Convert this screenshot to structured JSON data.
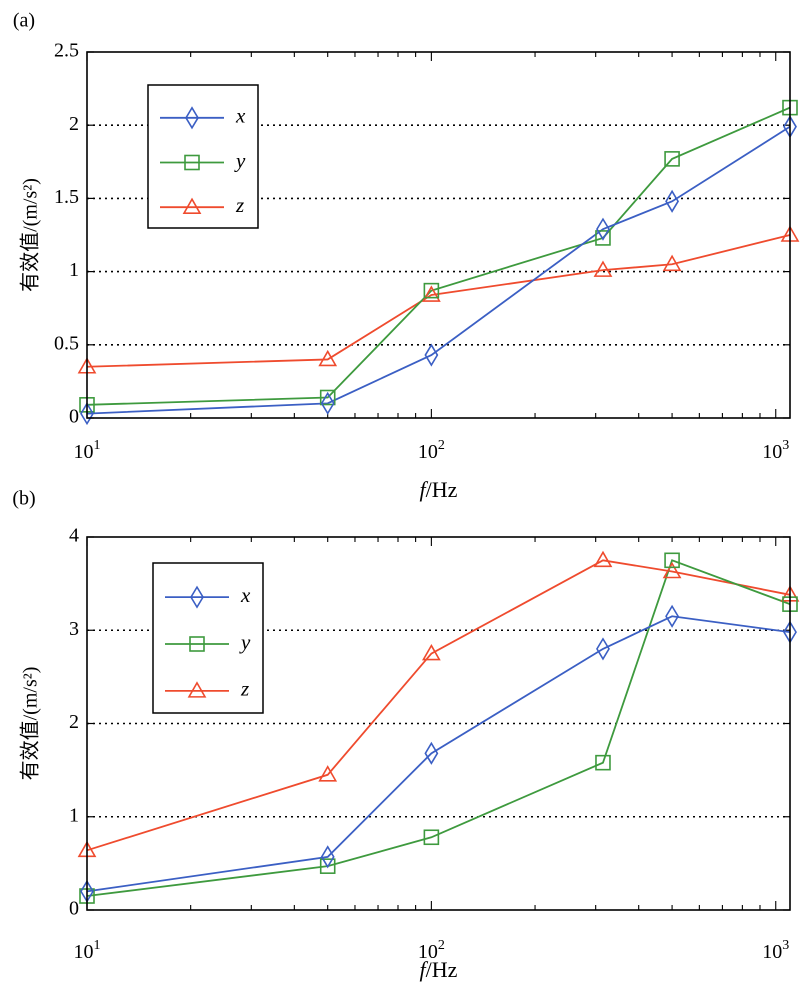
{
  "chart_data": [
    {
      "panel": "(a)",
      "type": "line",
      "x_scale": "log",
      "xlim": [
        10,
        1100
      ],
      "ylim": [
        0,
        2.5
      ],
      "xlabel_italic": "f",
      "xlabel_rest": "/Hz",
      "ylabel": "有效值/(m/s²)",
      "y_ticks": [
        0,
        0.5,
        1,
        1.5,
        2,
        2.5
      ],
      "y_tick_labels": [
        "0",
        "0.5",
        "1",
        "1.5",
        "2",
        "2.5"
      ],
      "x_ticks": [
        {
          "value": 10,
          "base": "10",
          "exp": "1"
        },
        {
          "value": 100,
          "base": "10",
          "exp": "2"
        },
        {
          "value": 1000,
          "base": "10",
          "exp": "3"
        }
      ],
      "x": [
        10,
        50,
        100,
        315,
        500,
        1100
      ],
      "grid": "horizontal dotted",
      "legend_position": "upper-left",
      "series": [
        {
          "name": "x",
          "marker": "diamond",
          "color": "#3b5fc4",
          "values": [
            0.03,
            0.1,
            0.43,
            1.29,
            1.48,
            1.99
          ]
        },
        {
          "name": "y",
          "marker": "square",
          "color": "#3e9a3e",
          "values": [
            0.09,
            0.14,
            0.87,
            1.23,
            1.77,
            2.12
          ]
        },
        {
          "name": "z",
          "marker": "triangle",
          "color": "#ef4b2e",
          "values": [
            0.35,
            0.4,
            0.84,
            1.01,
            1.05,
            1.25
          ]
        }
      ]
    },
    {
      "panel": "(b)",
      "type": "line",
      "x_scale": "log",
      "xlim": [
        10,
        1100
      ],
      "ylim": [
        0,
        4
      ],
      "xlabel_italic": "f",
      "xlabel_rest": "/Hz",
      "ylabel": "有效值/(m/s²)",
      "y_ticks": [
        0,
        1,
        2,
        3,
        4
      ],
      "y_tick_labels": [
        "0",
        "1",
        "2",
        "3",
        "4"
      ],
      "x_ticks": [
        {
          "value": 10,
          "base": "10",
          "exp": "1"
        },
        {
          "value": 100,
          "base": "10",
          "exp": "2"
        },
        {
          "value": 1000,
          "base": "10",
          "exp": "3"
        }
      ],
      "x": [
        10,
        50,
        100,
        315,
        500,
        1100
      ],
      "grid": "horizontal dotted",
      "legend_position": "upper-left",
      "series": [
        {
          "name": "x",
          "marker": "diamond",
          "color": "#3b5fc4",
          "values": [
            0.2,
            0.57,
            1.68,
            2.8,
            3.15,
            2.98
          ]
        },
        {
          "name": "y",
          "marker": "square",
          "color": "#3e9a3e",
          "values": [
            0.15,
            0.47,
            0.78,
            1.58,
            3.75,
            3.28
          ]
        },
        {
          "name": "z",
          "marker": "triangle",
          "color": "#ef4b2e",
          "values": [
            0.64,
            1.45,
            2.75,
            3.75,
            3.63,
            3.38
          ]
        }
      ]
    }
  ]
}
